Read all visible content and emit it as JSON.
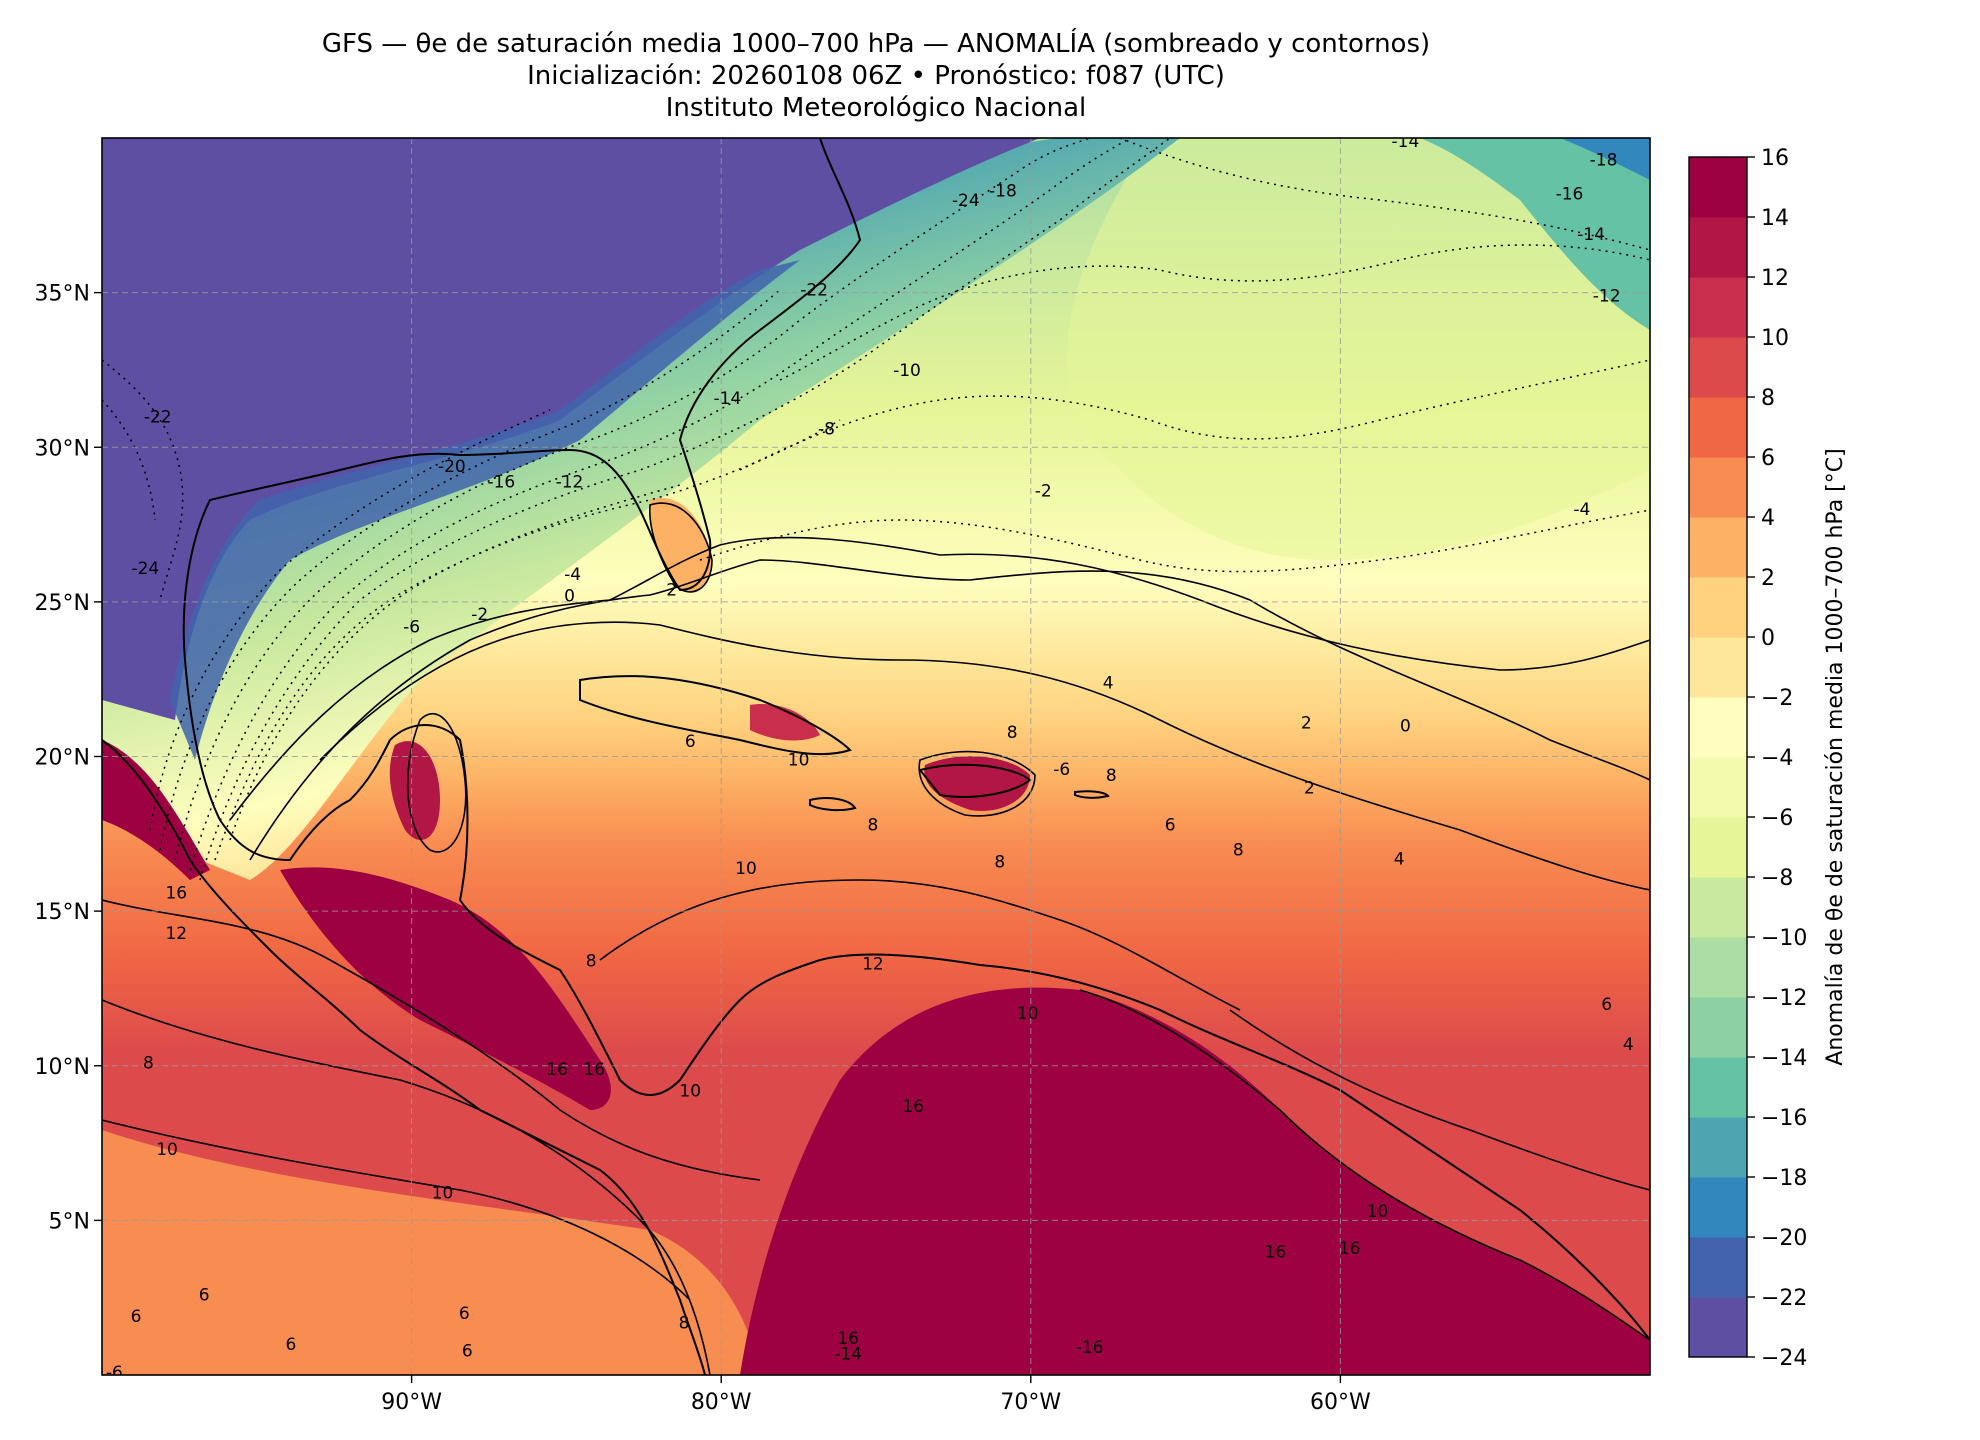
{
  "header": {
    "title_line1": "GFS — θe de saturación media 1000–700 hPa — ANOMALÍA (sombreado y contornos)",
    "title_line2": "Inicialización: 20260108 06Z   •   Pronóstico: f087 (UTC)",
    "title_line3": "Instituto Meteorológico Nacional"
  },
  "map": {
    "lon_range": [
      -100,
      -50
    ],
    "lat_range": [
      0,
      40
    ],
    "lon_ticks": [
      {
        "value": -90,
        "label": "90°W"
      },
      {
        "value": -80,
        "label": "80°W"
      },
      {
        "value": -70,
        "label": "70°W"
      },
      {
        "value": -60,
        "label": "60°W"
      }
    ],
    "lat_ticks": [
      {
        "value": 35,
        "label": "35°N"
      },
      {
        "value": 30,
        "label": "30°N"
      },
      {
        "value": 25,
        "label": "25°N"
      },
      {
        "value": 20,
        "label": "20°N"
      },
      {
        "value": 15,
        "label": "15°N"
      },
      {
        "value": 10,
        "label": "10°N"
      },
      {
        "value": 5,
        "label": "5°N"
      }
    ],
    "gridlines": "dashed",
    "contour_labels": [
      {
        "text": "-14",
        "lon": -57.9,
        "lat": 39.9
      },
      {
        "text": "-18",
        "lon": -51.5,
        "lat": 39.3
      },
      {
        "text": "-16",
        "lon": -52.6,
        "lat": 38.2
      },
      {
        "text": "-14",
        "lon": -51.9,
        "lat": 36.9
      },
      {
        "text": "-12",
        "lon": -51.4,
        "lat": 34.9
      },
      {
        "text": "-24",
        "lon": -72.1,
        "lat": 38.0
      },
      {
        "text": "-18",
        "lon": -70.9,
        "lat": 38.3
      },
      {
        "text": "-22",
        "lon": -77.0,
        "lat": 35.1
      },
      {
        "text": "-10",
        "lon": -74.0,
        "lat": 32.5
      },
      {
        "text": "-14",
        "lon": -79.8,
        "lat": 31.6
      },
      {
        "text": "-8",
        "lon": -76.6,
        "lat": 30.6
      },
      {
        "text": "-2",
        "lon": -69.6,
        "lat": 28.6
      },
      {
        "text": "-4",
        "lon": -52.2,
        "lat": 28.0
      },
      {
        "text": "-22",
        "lon": -98.2,
        "lat": 31.0
      },
      {
        "text": "-20",
        "lon": -88.7,
        "lat": 29.4
      },
      {
        "text": "-16",
        "lon": -87.1,
        "lat": 28.9
      },
      {
        "text": "-12",
        "lon": -84.9,
        "lat": 28.9
      },
      {
        "text": "-24",
        "lon": -98.6,
        "lat": 26.1
      },
      {
        "text": "-4",
        "lon": -84.8,
        "lat": 25.9
      },
      {
        "text": "-6",
        "lon": -90.0,
        "lat": 24.2
      },
      {
        "text": "-2",
        "lon": -87.8,
        "lat": 24.6
      },
      {
        "text": "0",
        "lon": -84.9,
        "lat": 25.2
      },
      {
        "text": "2",
        "lon": -81.6,
        "lat": 25.4
      },
      {
        "text": "4",
        "lon": -67.5,
        "lat": 22.4
      },
      {
        "text": "2",
        "lon": -61.1,
        "lat": 21.1
      },
      {
        "text": "0",
        "lon": -57.9,
        "lat": 21.0
      },
      {
        "text": "6",
        "lon": -81.0,
        "lat": 20.5
      },
      {
        "text": "10",
        "lon": -77.5,
        "lat": 19.9
      },
      {
        "text": "8",
        "lon": -70.6,
        "lat": 20.8
      },
      {
        "text": "-6",
        "lon": -69.0,
        "lat": 19.6
      },
      {
        "text": "8",
        "lon": -67.4,
        "lat": 19.4
      },
      {
        "text": "2",
        "lon": -61.0,
        "lat": 19.0
      },
      {
        "text": "8",
        "lon": -75.1,
        "lat": 17.8
      },
      {
        "text": "6",
        "lon": -65.5,
        "lat": 17.8
      },
      {
        "text": "8",
        "lon": -63.3,
        "lat": 17.0
      },
      {
        "text": "8",
        "lon": -71.0,
        "lat": 16.6
      },
      {
        "text": "4",
        "lon": -58.1,
        "lat": 16.7
      },
      {
        "text": "10",
        "lon": -79.2,
        "lat": 16.4
      },
      {
        "text": "16",
        "lon": -97.6,
        "lat": 15.6
      },
      {
        "text": "12",
        "lon": -97.6,
        "lat": 14.3
      },
      {
        "text": "8",
        "lon": -84.2,
        "lat": 13.4
      },
      {
        "text": "12",
        "lon": -75.1,
        "lat": 13.3
      },
      {
        "text": "10",
        "lon": -70.1,
        "lat": 11.7
      },
      {
        "text": "6",
        "lon": -51.4,
        "lat": 12.0
      },
      {
        "text": "4",
        "lon": -50.7,
        "lat": 10.7
      },
      {
        "text": "8",
        "lon": -98.5,
        "lat": 10.1
      },
      {
        "text": "16",
        "lon": -85.3,
        "lat": 9.9
      },
      {
        "text": "16",
        "lon": -84.1,
        "lat": 9.9
      },
      {
        "text": "10",
        "lon": -81.0,
        "lat": 9.2
      },
      {
        "text": "16",
        "lon": -73.8,
        "lat": 8.7
      },
      {
        "text": "10",
        "lon": -97.9,
        "lat": 7.3
      },
      {
        "text": "10",
        "lon": -89.0,
        "lat": 5.9
      },
      {
        "text": "10",
        "lon": -58.8,
        "lat": 5.3
      },
      {
        "text": "16",
        "lon": -62.1,
        "lat": 4.0
      },
      {
        "text": "16",
        "lon": -59.7,
        "lat": 4.1
      },
      {
        "text": "6",
        "lon": -96.7,
        "lat": 2.6
      },
      {
        "text": "6",
        "lon": -98.9,
        "lat": 1.9
      },
      {
        "text": "6",
        "lon": -88.3,
        "lat": 2.0
      },
      {
        "text": "6",
        "lon": -93.9,
        "lat": 1.0
      },
      {
        "text": "6",
        "lon": -88.2,
        "lat": 0.8
      },
      {
        "text": "8",
        "lon": -81.2,
        "lat": 1.7
      },
      {
        "text": "16",
        "lon": -75.9,
        "lat": 1.2
      },
      {
        "text": "-14",
        "lon": -75.9,
        "lat": 0.7
      },
      {
        "text": "-16",
        "lon": -68.1,
        "lat": 0.9
      },
      {
        "text": "-6",
        "lon": -99.6,
        "lat": 0.1
      }
    ]
  },
  "colorbar": {
    "label": "Anomalía de θe de saturación media 1000–700 hPa [°C]",
    "min": -24,
    "max": 16,
    "step": 2,
    "tick_labels": [
      "16",
      "14",
      "12",
      "10",
      "8",
      "6",
      "4",
      "2",
      "0",
      "−2",
      "−4",
      "−6",
      "−8",
      "−10",
      "−12",
      "−14",
      "−16",
      "−18",
      "−20",
      "−22",
      "−24"
    ],
    "colors": [
      "#5e4fa2",
      "#4164ad",
      "#3288bd",
      "#4ea5b1",
      "#66c2a5",
      "#8dd0a4",
      "#abdda4",
      "#c9e99e",
      "#e6f598",
      "#f4faad",
      "#fffebe",
      "#fee79a",
      "#fed27f",
      "#fdb164",
      "#f88d52",
      "#f06744",
      "#dc4a4c",
      "#c92e4c",
      "#b11645",
      "#9e0142"
    ]
  }
}
